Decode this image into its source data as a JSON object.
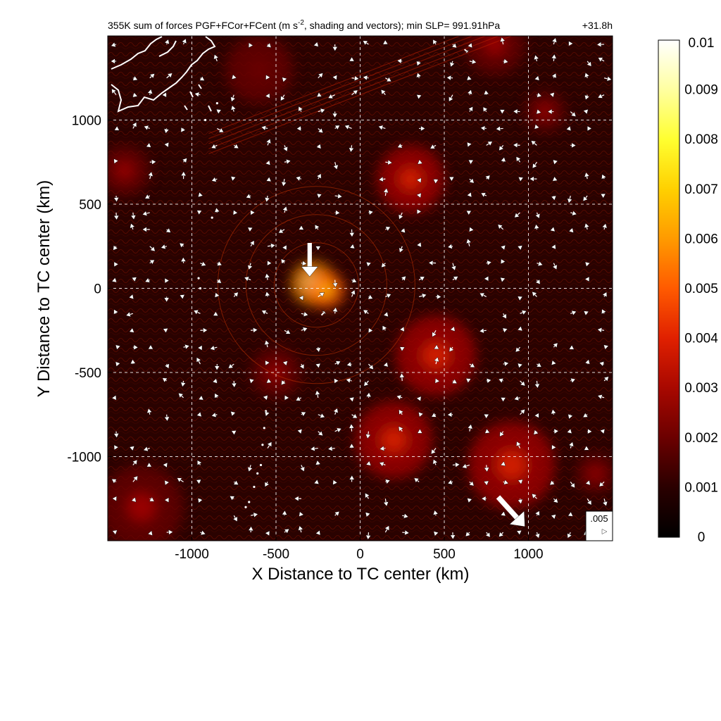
{
  "chart_data": {
    "type": "heatmap",
    "title": "355K sum of forces PGF+FCor+FCent (m s⁻², shading and vectors); min SLP= 991.91hPa",
    "title_parts": {
      "prefix": "355K sum of forces PGF+FCor+FCent (m s",
      "superscript": "-2",
      "suffix": ", shading and vectors); min SLP= 991.91hPa"
    },
    "time_label": "+31.8h",
    "xlabel": "X Distance to TC center (km)",
    "ylabel": "Y Distance to TC center (km)",
    "xlim": [
      -1500,
      1500
    ],
    "ylim": [
      -1500,
      1500
    ],
    "x_ticks": [
      {
        "value": -1000,
        "label": "-1000"
      },
      {
        "value": -500,
        "label": "-500"
      },
      {
        "value": 0,
        "label": "0"
      },
      {
        "value": 500,
        "label": "500"
      },
      {
        "value": 1000,
        "label": "1000"
      }
    ],
    "y_ticks": [
      {
        "value": 1000,
        "label": "1000"
      },
      {
        "value": 500,
        "label": "500"
      },
      {
        "value": 0,
        "label": "0"
      },
      {
        "value": -500,
        "label": "-500"
      },
      {
        "value": -1000,
        "label": "-1000"
      }
    ],
    "grid": true,
    "background_color": "#2a0200",
    "colorbar": {
      "min": 0,
      "max": 0.01,
      "ticks": [
        {
          "value": 0.01,
          "label": "0.01"
        },
        {
          "value": 0.009,
          "label": "0.009"
        },
        {
          "value": 0.008,
          "label": "0.008"
        },
        {
          "value": 0.007,
          "label": "0.007"
        },
        {
          "value": 0.006,
          "label": "0.006"
        },
        {
          "value": 0.005,
          "label": "0.005"
        },
        {
          "value": 0.004,
          "label": "0.004"
        },
        {
          "value": 0.003,
          "label": "0.003"
        },
        {
          "value": 0.002,
          "label": "0.002"
        },
        {
          "value": 0.001,
          "label": "0.001"
        },
        {
          "value": 0,
          "label": "0"
        }
      ],
      "colors": [
        "#000000",
        "#2a0000",
        "#6b0000",
        "#a80800",
        "#e02000",
        "#ff5a00",
        "#ff9a00",
        "#ffd000",
        "#ffff30",
        "#ffffa0",
        "#ffffff"
      ]
    },
    "hotspots": [
      {
        "x": -280,
        "y": 30,
        "value": 0.0065,
        "r": 130
      },
      {
        "x": -200,
        "y": -10,
        "value": 0.005,
        "r": 110
      },
      {
        "x": 300,
        "y": 650,
        "value": 0.003,
        "r": 200
      },
      {
        "x": 450,
        "y": -400,
        "value": 0.0025,
        "r": 240
      },
      {
        "x": 200,
        "y": -900,
        "value": 0.0028,
        "r": 230
      },
      {
        "x": 900,
        "y": -1050,
        "value": 0.003,
        "r": 260
      },
      {
        "x": -1300,
        "y": -1300,
        "value": 0.0022,
        "r": 250
      },
      {
        "x": 1100,
        "y": 1050,
        "value": 0.002,
        "r": 120
      },
      {
        "x": -1400,
        "y": 700,
        "value": 0.002,
        "r": 150
      },
      {
        "x": -500,
        "y": -500,
        "value": 0.0018,
        "r": 150
      },
      {
        "x": 1400,
        "y": -1100,
        "value": 0.0022,
        "r": 120
      },
      {
        "x": -600,
        "y": 1300,
        "value": 0.0015,
        "r": 200
      },
      {
        "x": 800,
        "y": 1450,
        "value": 0.0018,
        "r": 180
      }
    ],
    "large_vectors": [
      {
        "x": -300,
        "y": 270,
        "u": 0,
        "v": -0.012
      },
      {
        "x": 820,
        "y": -1240,
        "u": 0.0095,
        "v": -0.0105
      },
      {
        "x": -230,
        "y": -160,
        "u": 0.0012,
        "v": 0.0013
      },
      {
        "x": 620,
        "y": 1420,
        "u": 0.0012,
        "v": -0.001
      }
    ],
    "small_vector_spacing_km": 100,
    "reference_vector": {
      "value": 0.005,
      "label": ".005"
    },
    "coastline_color": "#ffffff",
    "vector_color": "#ffffff"
  }
}
